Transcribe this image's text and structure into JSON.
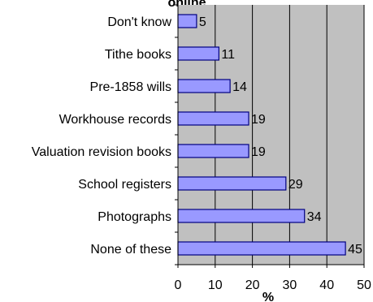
{
  "chart_data": {
    "type": "bar",
    "orientation": "horizontal",
    "title": "online",
    "xlabel": "%",
    "ylabel": "",
    "categories": [
      "Don't know",
      "Tithe books",
      "Pre-1858 wills",
      "Workhouse records",
      "Valuation revision books",
      "School registers",
      "Photographs",
      "None of these"
    ],
    "values": [
      5,
      11,
      14,
      19,
      19,
      29,
      34,
      45
    ],
    "data_labels": [
      "5",
      "11",
      "14",
      "19",
      "19",
      "29",
      "34",
      "45"
    ],
    "xlim": [
      0,
      50
    ],
    "xticks": [
      "0",
      "10",
      "20",
      "30",
      "40",
      "50"
    ],
    "grid": true,
    "legend": "none",
    "colors": {
      "plot_background": "#c0c0c0",
      "bar_fill": "#9999ff",
      "bar_stroke": "#000080",
      "grid": "#000000",
      "text": "#000000"
    }
  }
}
